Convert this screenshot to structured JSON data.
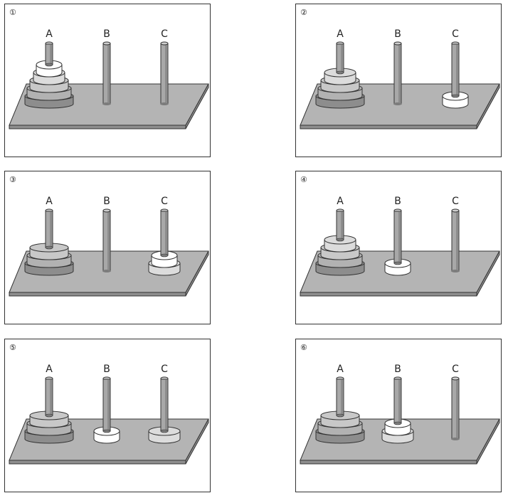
{
  "figure": {
    "colors": {
      "board_top": "#b4b4b4",
      "board_front": "#8e8e8e",
      "board_edge": "#333333",
      "peg": "#a8a8a8",
      "peg_shadow": "#7c7c7c",
      "disc_colors": [
        "#ffffff",
        "#dcdcdc",
        "#c8c8c8",
        "#b2b2b2",
        "#8d8d8d"
      ]
    },
    "peg_labels": [
      "A",
      "B",
      "C"
    ],
    "panels": [
      {
        "step": "①",
        "stacks": {
          "A": [
            4,
            3,
            2,
            1,
            0
          ],
          "B": [],
          "C": []
        }
      },
      {
        "step": "②",
        "stacks": {
          "A": [
            4,
            3,
            2,
            1
          ],
          "B": [],
          "C": [
            0
          ]
        }
      },
      {
        "step": "③",
        "stacks": {
          "A": [
            4,
            3,
            2
          ],
          "B": [],
          "C": [
            1,
            0
          ]
        }
      },
      {
        "step": "④",
        "stacks": {
          "A": [
            4,
            3,
            2,
            1
          ],
          "B": [
            0
          ],
          "C": []
        }
      },
      {
        "step": "⑤",
        "stacks": {
          "A": [
            4,
            3,
            2
          ],
          "B": [
            0
          ],
          "C": [
            1
          ]
        }
      },
      {
        "step": "⑥",
        "stacks": {
          "A": [
            4,
            3,
            2
          ],
          "B": [
            1,
            0
          ],
          "C": []
        }
      }
    ]
  }
}
